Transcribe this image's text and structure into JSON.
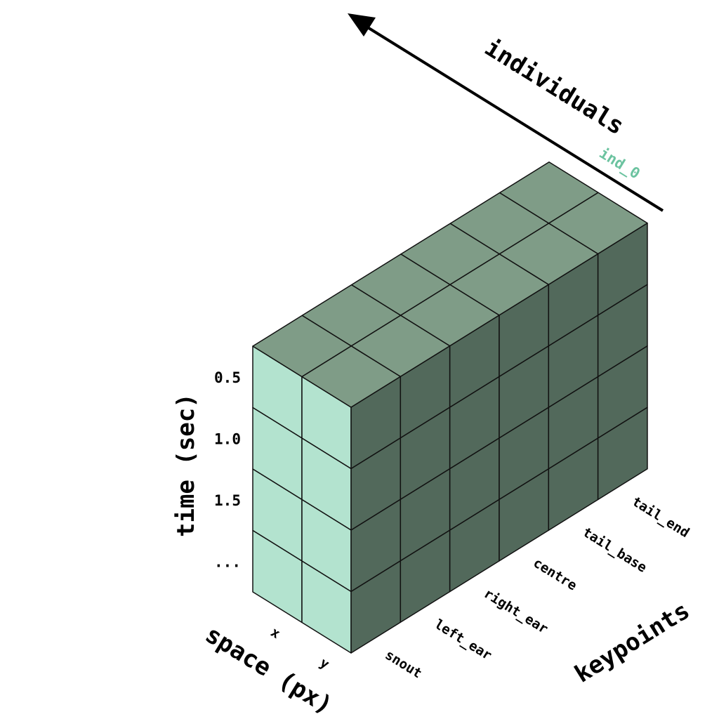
{
  "axes": {
    "individuals": {
      "title": "individuals",
      "labels": [
        "ind_0"
      ]
    },
    "time": {
      "title": "time (sec)",
      "labels": [
        "0.5",
        "1.0",
        "1.5",
        "..."
      ]
    },
    "space": {
      "title": "space (px)",
      "labels": [
        "x",
        "y"
      ]
    },
    "keypoints": {
      "title": "keypoints",
      "labels": [
        "snout",
        "left_ear",
        "right_ear",
        "centre",
        "tail_base",
        "tail_end"
      ]
    }
  },
  "colors": {
    "front_face": "#b3e3cf",
    "side_face": "#52695b",
    "top_face": "#7f9c87",
    "grid_line": "#111111",
    "individual_label": "#6cc3a0",
    "arrow": "#000000"
  }
}
